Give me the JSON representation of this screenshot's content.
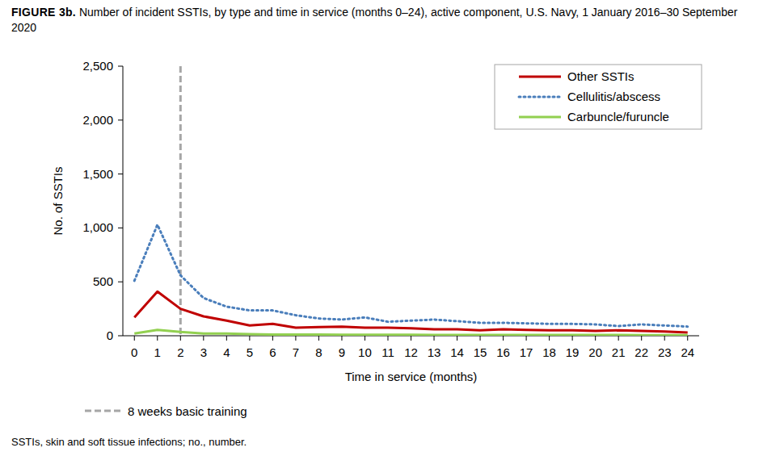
{
  "chart_data": {
    "type": "line",
    "title": "FIGURE 3b.",
    "subtitle": "Number of incident SSTIs, by type and time in service (months 0–24), active component, U.S. Navy, 1 January 2016–30 September 2020",
    "x_label": "Time in service (months)",
    "y_label": "No. of SSTIs",
    "footnote": "SSTIs, skin and soft tissue infections; no., number.",
    "x": [
      0,
      1,
      2,
      3,
      4,
      5,
      6,
      7,
      8,
      9,
      10,
      11,
      12,
      13,
      14,
      15,
      16,
      17,
      18,
      19,
      20,
      21,
      22,
      23,
      24
    ],
    "series": [
      {
        "name": "Other SSTIs",
        "color": "#c00000",
        "line_style": "solid",
        "values": [
          170,
          410,
          250,
          180,
          140,
          95,
          110,
          75,
          80,
          85,
          75,
          75,
          70,
          60,
          60,
          50,
          60,
          55,
          50,
          50,
          45,
          50,
          45,
          40,
          30
        ]
      },
      {
        "name": "Cellulitis/abscess",
        "color": "#4a7ebb",
        "line_style": "dotted",
        "values": [
          510,
          1030,
          560,
          350,
          270,
          235,
          235,
          190,
          160,
          150,
          170,
          130,
          140,
          150,
          135,
          120,
          120,
          115,
          110,
          110,
          105,
          90,
          105,
          95,
          85
        ]
      },
      {
        "name": "Carbuncle/furuncle",
        "color": "#92d050",
        "line_style": "solid",
        "values": [
          20,
          55,
          35,
          20,
          20,
          15,
          12,
          12,
          12,
          10,
          10,
          10,
          10,
          8,
          8,
          8,
          8,
          8,
          7,
          7,
          7,
          7,
          6,
          6,
          5
        ]
      }
    ],
    "xlim": [
      -0.5,
      24.5
    ],
    "xticks": [
      0,
      1,
      2,
      3,
      4,
      5,
      6,
      7,
      8,
      9,
      10,
      11,
      12,
      13,
      14,
      15,
      16,
      17,
      18,
      19,
      20,
      21,
      22,
      23,
      24
    ],
    "ylim": [
      0,
      2500
    ],
    "yticks": [
      0,
      500,
      {
        "value": 1000,
        "label": "1,000"
      },
      {
        "value": 1500,
        "label": "1,500"
      },
      {
        "value": 2000,
        "label": "2,000"
      },
      {
        "value": 2500,
        "label": "2,500"
      }
    ],
    "grid": false,
    "legend": "upper right",
    "annotations": [
      {
        "text": "8 weeks basic training",
        "x": 2
      }
    ]
  }
}
